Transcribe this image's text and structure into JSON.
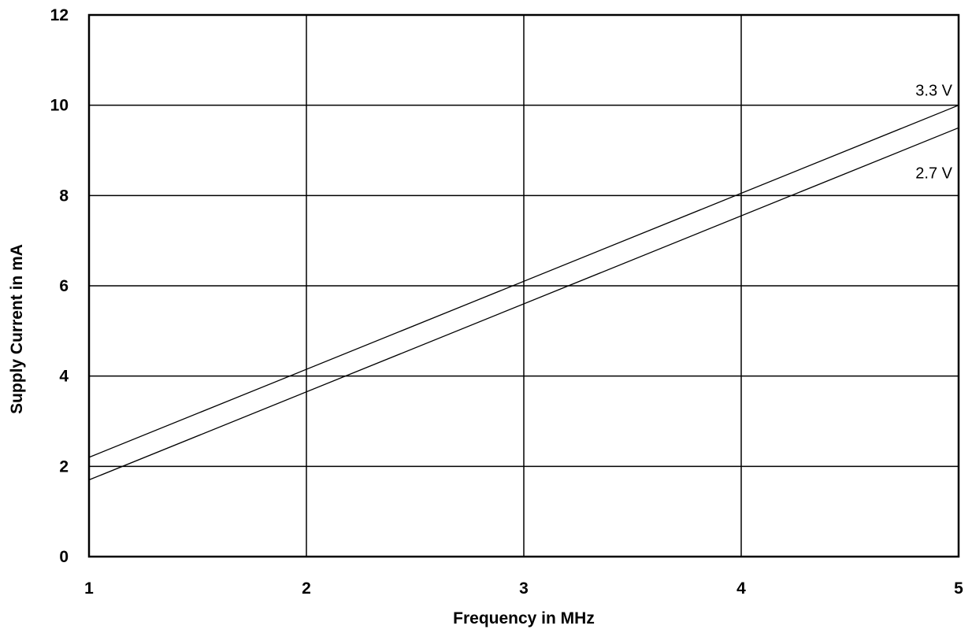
{
  "chart_data": {
    "type": "line",
    "title": "",
    "xlabel": "Frequency in MHz",
    "ylabel": "Supply Current in mA",
    "xlim": [
      1,
      5
    ],
    "ylim": [
      0,
      12
    ],
    "x_ticks": [
      1,
      2,
      3,
      4,
      5
    ],
    "y_ticks": [
      0,
      2,
      4,
      6,
      8,
      10,
      12
    ],
    "grid": true,
    "legend": "none",
    "series": [
      {
        "name": "3.3 V",
        "x": [
          1,
          5
        ],
        "y": [
          2.2,
          10.0
        ]
      },
      {
        "name": "2.7 V",
        "x": [
          1,
          5
        ],
        "y": [
          1.7,
          9.5
        ]
      }
    ]
  }
}
